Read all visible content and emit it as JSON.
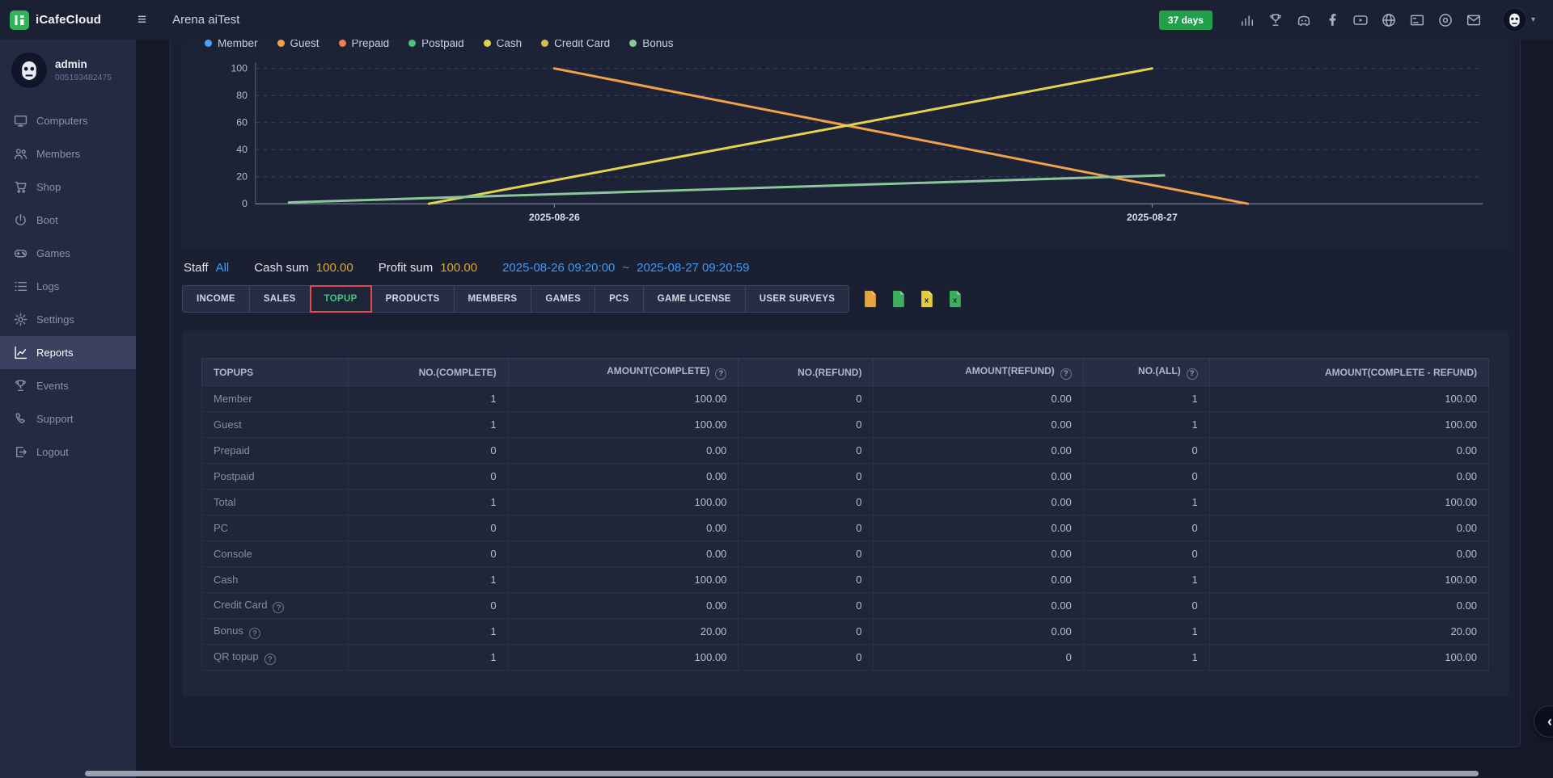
{
  "topbar": {
    "brand": "iCafeCloud",
    "title": "Arena aiTest",
    "badge": "37 days",
    "icons": [
      "stats-icon",
      "trophy-icon",
      "discord-icon",
      "facebook-icon",
      "youtube-icon",
      "globe-icon",
      "license-icon",
      "obs-icon",
      "mail-icon"
    ],
    "avatar_icon": "user-avatar",
    "caret_icon": "chevron-down-icon"
  },
  "sidebar": {
    "user": {
      "name": "admin",
      "id": "005193482475"
    },
    "items": [
      {
        "label": "Computers",
        "icon": "computers-icon",
        "active": false
      },
      {
        "label": "Members",
        "icon": "members-icon",
        "active": false
      },
      {
        "label": "Shop",
        "icon": "shop-icon",
        "active": false
      },
      {
        "label": "Boot",
        "icon": "boot-icon",
        "active": false
      },
      {
        "label": "Games",
        "icon": "games-icon",
        "active": false
      },
      {
        "label": "Logs",
        "icon": "logs-icon",
        "active": false
      },
      {
        "label": "Settings",
        "icon": "settings-icon",
        "active": false
      },
      {
        "label": "Reports",
        "icon": "reports-icon",
        "active": true
      },
      {
        "label": "Events",
        "icon": "events-icon",
        "active": false
      },
      {
        "label": "Support",
        "icon": "support-icon",
        "active": false
      },
      {
        "label": "Logout",
        "icon": "logout-icon",
        "active": false
      }
    ]
  },
  "filters": {
    "staff_label": "Staff",
    "staff_value": "All",
    "cash_sum_label": "Cash sum",
    "cash_sum": "100.00",
    "profit_sum_label": "Profit sum",
    "profit_sum": "100.00",
    "date_from": "2025-08-26 09:20:00",
    "date_separator": "~",
    "date_to": "2025-08-27 09:20:59"
  },
  "tabs": [
    "INCOME",
    "SALES",
    "TOPUP",
    "PRODUCTS",
    "MEMBERS",
    "GAMES",
    "PCS",
    "GAME LICENSE",
    "USER SURVEYS"
  ],
  "active_tab": "TOPUP",
  "exports": [
    {
      "name": "export-pdf-icon",
      "color": "#e7a43c",
      "mark": ""
    },
    {
      "name": "export-excel-icon",
      "color": "#3fae5c",
      "mark": ""
    },
    {
      "name": "export-csv-icon",
      "color": "#e5c93e",
      "mark": "x"
    },
    {
      "name": "export-xlsx-icon",
      "color": "#3fae5c",
      "mark": "x"
    }
  ],
  "chart_data": {
    "type": "line",
    "title": "",
    "xlabel": "",
    "ylabel": "",
    "ylim": [
      0,
      100
    ],
    "y_ticks": [
      0,
      20,
      40,
      60,
      80,
      100
    ],
    "grid": "dashed",
    "legend_position": "top",
    "x_labels": [
      "2025-08-26",
      "2025-08-27"
    ],
    "x_label_positions": [
      0.25,
      0.75
    ],
    "legend": [
      {
        "label": "Member",
        "color": "#4aa3ff"
      },
      {
        "label": "Guest",
        "color": "#f2a04a"
      },
      {
        "label": "Prepaid",
        "color": "#ef7d4f"
      },
      {
        "label": "Postpaid",
        "color": "#4cc27d"
      },
      {
        "label": "Cash",
        "color": "#e3d34f"
      },
      {
        "label": "Credit Card",
        "color": "#cfc14a"
      },
      {
        "label": "Bonus",
        "color": "#8cc79b"
      }
    ],
    "series": [
      {
        "name": "Guest",
        "color": "#f2a04a",
        "points": [
          [
            0.25,
            100
          ],
          [
            0.83,
            0
          ]
        ]
      },
      {
        "name": "Cash",
        "color": "#e3d34f",
        "points": [
          [
            0.145,
            0
          ],
          [
            0.75,
            100
          ]
        ]
      },
      {
        "name": "Bonus",
        "color": "#8cc79b",
        "points": [
          [
            0.028,
            1
          ],
          [
            0.76,
            21
          ]
        ]
      }
    ]
  },
  "table": {
    "headers": [
      {
        "label": "TOPUPS",
        "info": false
      },
      {
        "label": "NO.(COMPLETE)",
        "info": false
      },
      {
        "label": "AMOUNT(COMPLETE)",
        "info": true
      },
      {
        "label": "NO.(REFUND)",
        "info": false
      },
      {
        "label": "AMOUNT(REFUND)",
        "info": true
      },
      {
        "label": "NO.(ALL)",
        "info": true
      },
      {
        "label": "AMOUNT(COMPLETE - REFUND)",
        "info": false
      }
    ],
    "rows": [
      {
        "label": "Member",
        "info": false,
        "values": [
          "1",
          "100.00",
          "0",
          "0.00",
          "1",
          "100.00"
        ]
      },
      {
        "label": "Guest",
        "info": false,
        "values": [
          "1",
          "100.00",
          "0",
          "0.00",
          "1",
          "100.00"
        ]
      },
      {
        "label": "Prepaid",
        "info": false,
        "values": [
          "0",
          "0.00",
          "0",
          "0.00",
          "0",
          "0.00"
        ]
      },
      {
        "label": "Postpaid",
        "info": false,
        "values": [
          "0",
          "0.00",
          "0",
          "0.00",
          "0",
          "0.00"
        ]
      },
      {
        "label": "Total",
        "info": false,
        "values": [
          "1",
          "100.00",
          "0",
          "0.00",
          "1",
          "100.00"
        ]
      },
      {
        "label": "PC",
        "info": false,
        "values": [
          "0",
          "0.00",
          "0",
          "0.00",
          "0",
          "0.00"
        ]
      },
      {
        "label": "Console",
        "info": false,
        "values": [
          "0",
          "0.00",
          "0",
          "0.00",
          "0",
          "0.00"
        ]
      },
      {
        "label": "Cash",
        "info": false,
        "values": [
          "1",
          "100.00",
          "0",
          "0.00",
          "1",
          "100.00"
        ]
      },
      {
        "label": "Credit Card",
        "info": true,
        "values": [
          "0",
          "0.00",
          "0",
          "0.00",
          "0",
          "0.00"
        ]
      },
      {
        "label": "Bonus",
        "info": true,
        "values": [
          "1",
          "20.00",
          "0",
          "0.00",
          "1",
          "20.00"
        ]
      },
      {
        "label": "QR topup",
        "info": true,
        "values": [
          "1",
          "100.00",
          "0",
          "0",
          "1",
          "100.00"
        ]
      }
    ]
  },
  "fab_icon": "chevron-left-icon"
}
